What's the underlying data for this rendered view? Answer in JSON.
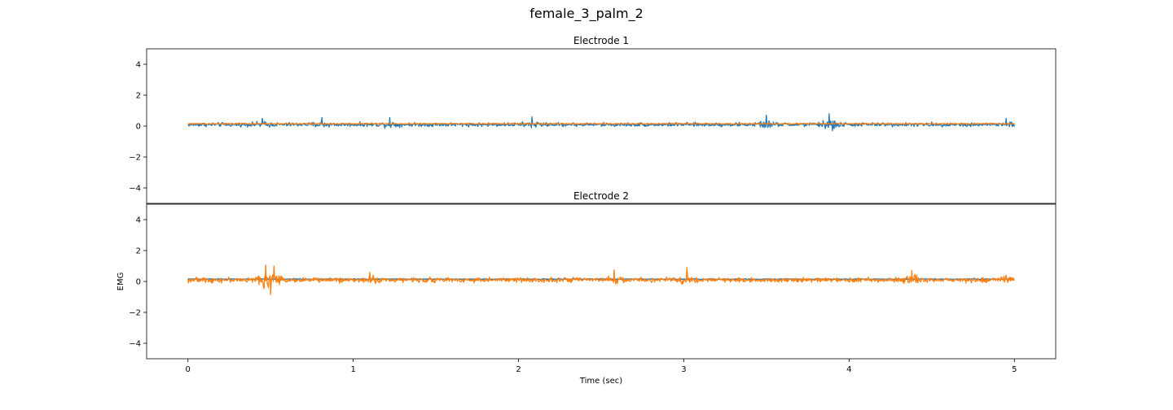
{
  "figure": {
    "suptitle": "female_3_palm_2"
  },
  "chart_data": [
    {
      "type": "line",
      "title": "Electrode 1",
      "xlabel": "",
      "ylabel": "",
      "xlim": [
        -0.25,
        5.25
      ],
      "ylim": [
        -5,
        5
      ],
      "xticks": [
        0,
        1,
        2,
        3,
        4,
        5
      ],
      "yticks": [
        -4,
        -2,
        0,
        2,
        4
      ],
      "grid": false,
      "series": [
        {
          "color": "#1f77b4",
          "x_range": [
            0,
            5
          ],
          "baseline": 0.1,
          "amplitude": 0.18,
          "peaks": [
            {
              "x": 0.45,
              "y": 0.5
            },
            {
              "x": 0.81,
              "y": 0.55
            },
            {
              "x": 1.22,
              "y": 0.55
            },
            {
              "x": 2.08,
              "y": 0.6
            },
            {
              "x": 3.5,
              "y": 0.7
            },
            {
              "x": 3.88,
              "y": 0.8
            },
            {
              "x": 3.9,
              "y": -0.3
            },
            {
              "x": 4.95,
              "y": 0.5
            }
          ]
        },
        {
          "color": "#ff7f0e",
          "x_range": [
            0,
            5
          ],
          "baseline": 0.15,
          "amplitude": 0.05,
          "peaks": []
        }
      ]
    },
    {
      "type": "line",
      "title": "Electrode 2",
      "xlabel": "Time (sec)",
      "ylabel": "EMG",
      "xlim": [
        -0.25,
        5.25
      ],
      "ylim": [
        -5,
        5
      ],
      "xticks": [
        0,
        1,
        2,
        3,
        4,
        5
      ],
      "yticks": [
        -4,
        -2,
        0,
        2,
        4
      ],
      "grid": false,
      "series": [
        {
          "color": "#1f77b4",
          "x_range": [
            0,
            5
          ],
          "baseline": 0.15,
          "amplitude": 0.05,
          "peaks": []
        },
        {
          "color": "#ff7f0e",
          "x_range": [
            0,
            5
          ],
          "baseline": 0.1,
          "amplitude": 0.22,
          "peaks": [
            {
              "x": 0.47,
              "y": 1.05
            },
            {
              "x": 0.5,
              "y": -0.85
            },
            {
              "x": 0.52,
              "y": 1.0
            },
            {
              "x": 1.1,
              "y": 0.6
            },
            {
              "x": 2.58,
              "y": 0.75
            },
            {
              "x": 3.02,
              "y": 0.9
            },
            {
              "x": 4.38,
              "y": 0.7
            },
            {
              "x": 4.95,
              "y": 0.4
            }
          ]
        }
      ]
    }
  ]
}
